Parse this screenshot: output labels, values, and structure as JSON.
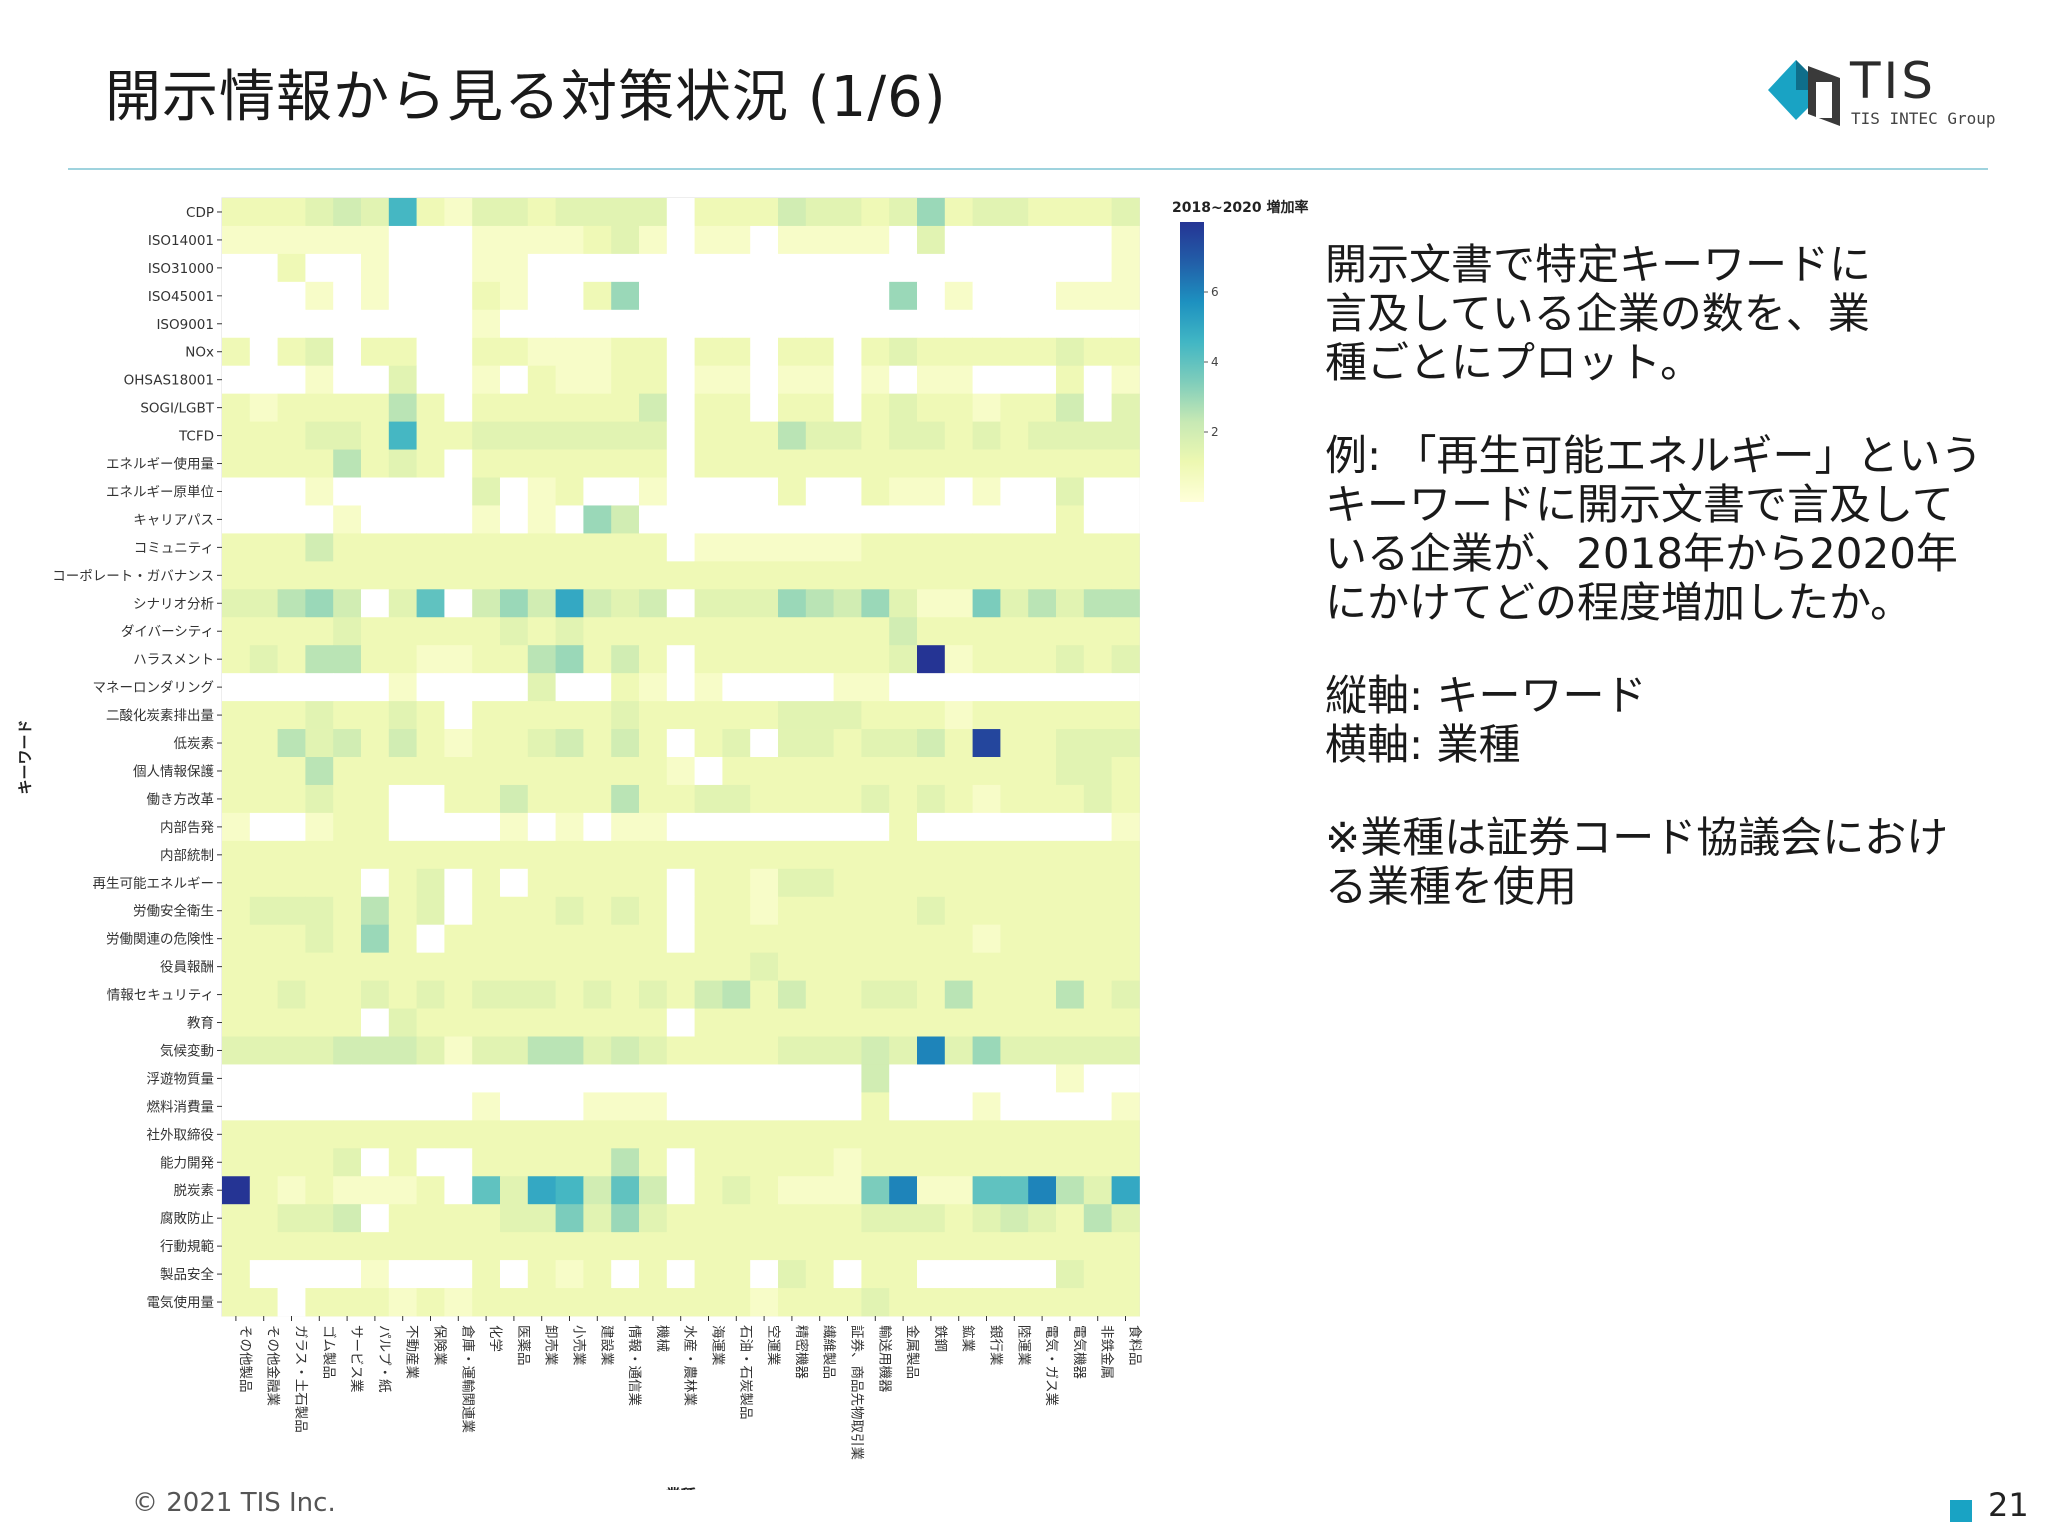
{
  "page": {
    "title": "開示情報から見る対策状況 (1/6)",
    "logo_text": "TIS",
    "logo_sub": "TIS INTEC Group",
    "footer": "© 2021 TIS Inc.",
    "page_number": "21",
    "accent_color": "#19a3c4"
  },
  "side": {
    "p1": "開示文書で特定キーワードに\n言及している企業の数を、業\n種ごとにプロット。",
    "p2": "例: 「再生可能エネルギー」という\nキーワードに開示文書で言及して\nいる企業が、2018年から2020年\nにかけてどの程度増加したか。",
    "p3": "縦軸: キーワード\n横軸: 業種",
    "p4": "※業種は証券コード協議会におけ\nる業種を使用"
  },
  "chart_data": {
    "type": "heatmap",
    "title": "2018~2020 増加率",
    "xlabel": "業種",
    "ylabel": "キーワード",
    "colorbar_ticks": [
      2,
      4,
      6
    ],
    "color_range": [
      0,
      8
    ],
    "colormap": [
      "#ffffd9",
      "#edf8b1",
      "#c7e9b4",
      "#7fcdbb",
      "#41b6c4",
      "#1d91c0",
      "#225ea8",
      "#253494"
    ],
    "rows": [
      "CDP",
      "ISO14001",
      "ISO31000",
      "ISO45001",
      "ISO9001",
      "NOx",
      "OHSAS18001",
      "SOGI/LGBT",
      "TCFD",
      "エネルギー使用量",
      "エネルギー原単位",
      "キャリアパス",
      "コミュニティ",
      "コーポレート・ガバナンス",
      "シナリオ分析",
      "ダイバーシティ",
      "ハラスメント",
      "マネーロンダリング",
      "二酸化炭素排出量",
      "低炭素",
      "個人情報保護",
      "働き方改革",
      "内部告発",
      "内部統制",
      "再生可能エネルギー",
      "労働安全衛生",
      "労働関連の危険性",
      "役員報酬",
      "情報セキュリティ",
      "教育",
      "気候変動",
      "浮遊物質量",
      "燃料消費量",
      "社外取締役",
      "能力開発",
      "脱炭素",
      "腐敗防止",
      "行動規範",
      "製品安全",
      "電気使用量"
    ],
    "columns": [
      "その他製品",
      "その他金融業",
      "ガラス・土石製品",
      "ゴム製品",
      "サービス業",
      "パルプ・紙",
      "不動産業",
      "保険業",
      "倉庫・運輸関連業",
      "化学",
      "医薬品",
      "卸売業",
      "小売業",
      "建設業",
      "情報・通信業",
      "機械",
      "水産・農林業",
      "海運業",
      "石油・石炭製品",
      "空運業",
      "精密機器",
      "繊維製品",
      "証券、商品先物取引業",
      "輸送用機器",
      "金属製品",
      "鉄鋼",
      "鉱業",
      "銀行業",
      "陸運業",
      "電気・ガス業",
      "電気機器",
      "非鉄金属",
      "食料品"
    ],
    "values": [
      [
        1,
        1,
        1,
        1.5,
        2,
        1.5,
        4.5,
        1,
        0.5,
        1.5,
        1.5,
        1,
        1.5,
        1.5,
        1.5,
        1.5,
        0,
        1,
        1,
        1,
        2,
        1.5,
        1.5,
        1,
        1.5,
        3,
        1,
        1.5,
        1.5,
        1,
        1,
        1,
        1.5
      ],
      [
        0.5,
        0.5,
        0.5,
        0.5,
        0.5,
        0.5,
        0,
        0,
        0,
        0.5,
        0.5,
        0.5,
        0.5,
        1,
        1.5,
        0.5,
        0,
        0.5,
        0.5,
        0,
        0.5,
        0.5,
        0.5,
        0.5,
        0,
        1.5,
        0,
        0,
        0,
        0,
        0,
        0,
        0.5
      ],
      [
        0,
        0,
        1,
        0,
        0,
        0.5,
        0,
        0,
        0,
        0.5,
        0.5,
        0,
        0,
        0,
        0,
        0,
        0,
        0,
        0,
        0,
        0,
        0,
        0,
        0,
        0,
        0,
        0,
        0,
        0,
        0,
        0,
        0,
        0.5
      ],
      [
        0,
        0,
        0,
        0.5,
        0,
        0.5,
        0,
        0,
        0,
        1,
        0.5,
        0,
        0,
        1,
        3,
        0,
        0,
        0,
        0,
        0,
        0,
        0,
        0,
        0,
        3,
        0,
        0.5,
        0,
        0,
        0,
        0.5,
        0.5,
        0.5
      ],
      [
        0,
        0,
        0,
        0,
        0,
        0,
        0,
        0,
        0,
        0.5,
        0,
        0,
        0,
        0,
        0,
        0,
        0,
        0,
        0,
        0,
        0,
        0,
        0,
        0,
        0,
        0,
        0,
        0,
        0,
        0,
        0,
        0,
        0
      ],
      [
        1,
        0,
        1,
        1.5,
        0,
        1,
        1,
        0,
        0,
        1,
        1,
        0.5,
        0.5,
        0.5,
        1,
        1,
        0,
        1,
        1,
        0,
        1,
        1,
        0,
        1,
        1.5,
        1,
        1,
        1,
        1,
        1,
        1.5,
        1,
        1
      ],
      [
        0,
        0,
        0,
        0.5,
        0,
        0,
        1.5,
        0,
        0,
        0.5,
        0,
        1,
        0.5,
        0.5,
        1,
        1,
        0,
        0.5,
        0.5,
        0,
        0.5,
        0.5,
        0,
        0.5,
        0,
        0.5,
        0.5,
        0,
        0,
        0,
        1,
        0,
        0.5
      ],
      [
        1,
        0.5,
        1,
        1,
        1,
        1,
        2.5,
        1,
        0,
        1,
        1,
        1,
        1,
        1,
        1,
        2,
        0,
        1,
        1,
        0,
        1,
        1,
        0,
        1,
        1.5,
        1,
        1,
        0.5,
        1,
        1,
        2,
        0,
        1.5
      ],
      [
        1,
        1,
        1,
        1.5,
        1.5,
        1,
        4.5,
        1,
        1,
        1.5,
        1.5,
        1.5,
        1.5,
        1.5,
        1.5,
        1.5,
        0,
        1,
        1,
        1,
        2.5,
        1.5,
        1.5,
        1,
        1.5,
        1.5,
        1,
        1.5,
        1,
        1.5,
        1.5,
        1.5,
        1.5
      ],
      [
        1,
        1,
        1,
        1,
        2.5,
        1,
        1.5,
        1,
        0,
        1,
        1,
        1,
        1,
        1,
        1,
        1,
        0,
        1,
        1,
        1,
        1,
        1,
        1,
        1,
        1,
        1,
        1,
        1,
        1,
        1,
        1,
        1,
        1
      ],
      [
        0,
        0,
        0,
        0.5,
        0,
        0,
        0,
        0,
        0,
        1.5,
        0,
        0.5,
        1,
        0,
        0,
        0.5,
        0,
        0,
        0,
        0,
        1,
        0,
        0,
        1,
        0.5,
        0.5,
        0,
        0.5,
        0,
        0,
        1.5,
        0,
        0
      ],
      [
        0,
        0,
        0,
        0,
        0.5,
        0,
        0,
        0,
        0,
        0.5,
        0,
        0.5,
        0,
        3,
        2,
        0,
        0,
        0,
        0,
        0,
        0,
        0,
        0,
        0,
        0,
        0,
        0,
        0,
        0,
        0,
        1,
        0,
        0
      ],
      [
        1,
        1,
        1,
        2,
        1,
        1,
        1,
        1,
        1,
        1,
        1,
        1,
        1,
        1,
        1,
        1,
        0,
        0.5,
        0.5,
        0.5,
        0.5,
        0.5,
        0.5,
        1,
        1,
        1,
        1,
        1,
        1,
        1,
        1,
        1,
        1
      ],
      [
        1,
        1,
        1,
        1,
        1,
        1,
        1,
        1,
        1,
        1,
        1,
        1,
        1,
        1,
        1,
        1,
        1,
        1,
        1,
        1,
        1,
        1,
        1,
        1,
        1,
        1,
        1,
        1,
        1,
        1,
        1,
        1,
        1
      ],
      [
        1.5,
        1.5,
        2.5,
        3,
        2,
        0,
        1.5,
        4,
        0,
        2,
        3,
        2,
        5,
        2,
        1.5,
        2,
        0,
        1.5,
        1.5,
        1.5,
        3,
        2.5,
        2,
        3,
        1.5,
        0.5,
        0.5,
        3.5,
        1.5,
        2.5,
        1.5,
        2.5,
        2.5
      ],
      [
        1,
        1,
        1,
        1,
        1.5,
        1,
        1,
        1,
        1,
        1,
        1.5,
        1,
        1.5,
        1,
        1,
        1,
        1,
        1,
        1,
        1,
        1,
        1,
        1,
        1,
        2,
        1,
        1,
        1,
        1,
        1,
        1,
        1,
        1
      ],
      [
        1,
        1.5,
        1,
        2.5,
        2.5,
        1,
        1,
        0.5,
        0.5,
        1,
        1,
        2.5,
        3,
        1,
        2,
        1,
        0,
        1,
        1,
        1,
        1,
        1,
        1,
        1,
        1.5,
        8,
        0.5,
        1,
        1,
        1,
        1.5,
        1,
        1.5
      ],
      [
        0,
        0,
        0,
        0,
        0,
        0,
        0.5,
        0,
        0,
        0,
        0,
        1.5,
        0,
        0,
        1,
        0.5,
        0,
        0.5,
        0,
        0,
        0,
        0,
        0.5,
        0.5,
        0,
        0,
        0,
        0,
        0,
        0,
        0,
        0,
        0
      ],
      [
        1,
        1,
        1,
        1.5,
        1,
        1,
        1.5,
        1,
        0,
        1,
        1,
        1,
        1,
        1,
        1.5,
        1,
        1,
        1,
        1,
        1,
        1.5,
        1.5,
        1.5,
        1,
        1,
        1,
        0.5,
        1,
        1,
        1,
        1,
        1,
        1
      ],
      [
        1,
        1,
        2.5,
        1.5,
        2,
        1,
        2,
        1,
        0.5,
        1,
        1,
        1.5,
        2,
        1,
        2,
        1,
        0,
        1,
        1.5,
        0,
        1.5,
        1.5,
        1,
        1.5,
        1.5,
        2,
        1,
        7.5,
        1,
        1,
        1.5,
        1.5,
        1.5
      ],
      [
        1,
        1,
        1,
        2.5,
        1,
        1,
        1,
        1,
        1,
        1,
        1,
        1,
        1,
        1,
        1,
        1,
        0.5,
        0,
        1,
        1,
        1,
        1,
        1,
        1,
        1,
        1,
        1,
        1,
        1,
        1,
        1.5,
        1.5,
        1
      ],
      [
        1,
        1,
        1,
        1.5,
        1,
        1,
        0,
        0,
        1,
        1,
        2,
        1,
        1,
        1,
        2.5,
        1,
        1,
        1.5,
        1.5,
        1,
        1,
        1,
        1,
        1.5,
        1,
        1.5,
        1,
        0.5,
        1,
        1,
        1,
        1.5,
        1
      ],
      [
        0.5,
        0,
        0,
        0.5,
        1,
        1,
        0,
        0,
        0,
        0,
        0.5,
        0,
        0.5,
        0,
        0.5,
        0.5,
        0,
        0,
        0,
        0,
        0,
        0,
        0,
        0,
        1,
        0,
        0,
        0,
        0,
        0,
        0,
        0,
        0.5
      ],
      [
        1,
        1,
        1,
        1,
        1,
        1,
        1,
        1,
        1,
        1,
        1,
        1,
        1,
        1,
        1,
        1,
        1,
        1,
        1,
        1,
        1,
        1,
        1,
        1,
        1,
        1,
        1,
        1,
        1,
        1,
        1,
        1,
        1
      ],
      [
        1,
        1,
        1,
        1,
        1,
        0,
        1,
        1.5,
        0,
        1,
        0,
        1,
        1,
        1,
        1,
        1,
        0,
        1,
        1,
        0.5,
        1.5,
        1.5,
        1,
        1,
        1,
        1,
        1,
        1,
        1,
        1,
        1,
        1,
        1
      ],
      [
        1,
        1.5,
        1.5,
        1.5,
        1,
        2.5,
        1,
        1.5,
        0,
        1,
        1,
        1,
        1.5,
        1,
        1.5,
        1,
        0,
        1,
        1,
        0.5,
        1,
        1,
        1,
        1,
        1,
        1.5,
        1,
        1,
        1,
        1,
        1,
        1,
        1
      ],
      [
        1,
        1,
        1,
        1.5,
        1,
        3,
        1,
        0,
        1,
        1,
        1,
        1,
        1,
        1,
        1,
        1,
        0,
        1,
        1,
        1,
        1,
        1,
        1,
        1,
        1,
        1,
        1,
        0.5,
        1,
        1,
        1,
        1,
        1
      ],
      [
        1,
        1,
        1,
        1,
        1,
        1,
        1,
        1,
        1,
        1,
        1,
        1,
        1,
        1,
        1,
        1,
        1,
        1,
        1,
        1.5,
        1,
        1,
        1,
        1,
        1,
        1,
        1,
        1,
        1,
        1,
        1,
        1,
        1
      ],
      [
        1,
        1,
        1.5,
        1,
        1,
        1.5,
        1,
        1.5,
        1,
        1.5,
        1.5,
        1.5,
        1,
        1.5,
        1,
        1.5,
        1,
        2,
        2.5,
        1,
        2,
        1,
        1,
        1.5,
        1.5,
        1,
        2.5,
        1,
        1,
        1,
        2.5,
        1,
        1.5
      ],
      [
        1,
        1,
        1,
        1,
        1,
        0,
        1.5,
        1,
        1,
        1,
        1,
        1,
        1,
        1,
        1,
        1,
        0,
        1,
        1,
        1,
        1,
        1,
        1,
        1,
        1,
        1,
        1,
        1,
        1,
        1,
        1,
        1,
        1
      ],
      [
        1.5,
        1.5,
        1.5,
        1.5,
        2,
        2,
        2,
        1.5,
        0.5,
        1.5,
        1.5,
        2.5,
        2.5,
        1.5,
        2,
        1.5,
        1,
        1,
        1,
        1,
        1.5,
        1.5,
        1.5,
        2,
        1.5,
        6,
        1.5,
        3,
        1.5,
        1.5,
        1.5,
        1.5,
        1.5
      ],
      [
        0,
        0,
        0,
        0,
        0,
        0,
        0,
        0,
        0,
        0,
        0,
        0,
        0,
        0,
        0,
        0,
        0,
        0,
        0,
        0,
        0,
        0,
        0,
        2,
        0,
        0,
        0,
        0,
        0,
        0,
        0.5,
        0,
        0
      ],
      [
        0,
        0,
        0,
        0,
        0,
        0,
        0,
        0,
        0,
        0.5,
        0,
        0,
        0,
        0.5,
        0.5,
        0.5,
        0,
        0,
        0,
        0,
        0,
        0,
        0,
        1,
        0,
        0,
        0,
        0.5,
        0,
        0,
        0,
        0,
        0.5
      ],
      [
        1,
        1,
        1,
        1,
        1,
        1,
        1,
        1,
        1,
        1,
        1,
        1,
        1,
        1,
        1,
        1,
        1,
        1,
        1,
        1,
        1,
        1,
        1,
        1,
        1,
        1,
        1,
        1,
        1,
        1,
        1,
        1,
        1
      ],
      [
        1,
        1,
        1,
        1,
        1.5,
        0,
        1,
        0,
        0,
        1,
        1,
        1,
        1,
        1,
        2.5,
        1,
        0,
        1,
        1,
        1,
        1,
        1,
        0.5,
        1,
        1,
        1,
        1,
        1,
        1,
        1,
        1,
        1,
        1
      ],
      [
        8,
        1,
        0.5,
        1,
        0.5,
        0.5,
        0.5,
        1,
        0,
        4,
        1.5,
        5,
        4.5,
        2,
        4,
        2,
        0,
        1,
        1.5,
        1,
        0.5,
        0.5,
        0.5,
        3.5,
        6,
        0.5,
        0.5,
        4,
        4,
        6,
        2.5,
        1.5,
        5
      ],
      [
        1,
        1,
        1.5,
        1.5,
        2,
        0,
        1,
        1,
        1,
        1,
        1.5,
        1.5,
        3.5,
        1.5,
        3,
        1.5,
        1,
        1,
        1,
        1,
        1,
        1,
        1,
        1.5,
        1.5,
        1.5,
        1,
        1.5,
        2,
        1.5,
        1,
        2.5,
        1.5
      ],
      [
        1,
        1,
        1,
        1,
        1,
        1,
        1,
        1,
        1,
        1,
        1,
        1,
        1,
        1,
        1,
        1,
        1,
        1,
        1,
        1,
        1,
        1,
        1,
        1,
        1,
        1,
        1,
        1,
        1,
        1,
        1,
        1,
        1
      ],
      [
        1,
        0,
        0,
        0,
        0,
        0.5,
        0,
        0,
        0,
        1,
        0,
        1,
        0.5,
        1,
        0,
        1,
        0,
        1,
        1,
        0,
        1.5,
        1,
        0,
        1,
        1,
        0,
        0,
        0,
        0,
        0,
        1.5,
        1,
        1
      ],
      [
        1,
        1,
        0,
        1,
        1,
        1,
        0.5,
        1,
        0.5,
        1,
        1,
        1,
        1,
        1,
        1,
        1,
        1,
        1,
        1,
        0.5,
        1,
        1,
        1,
        1.5,
        1,
        1,
        1,
        1,
        1,
        1,
        1,
        1,
        1
      ]
    ]
  }
}
